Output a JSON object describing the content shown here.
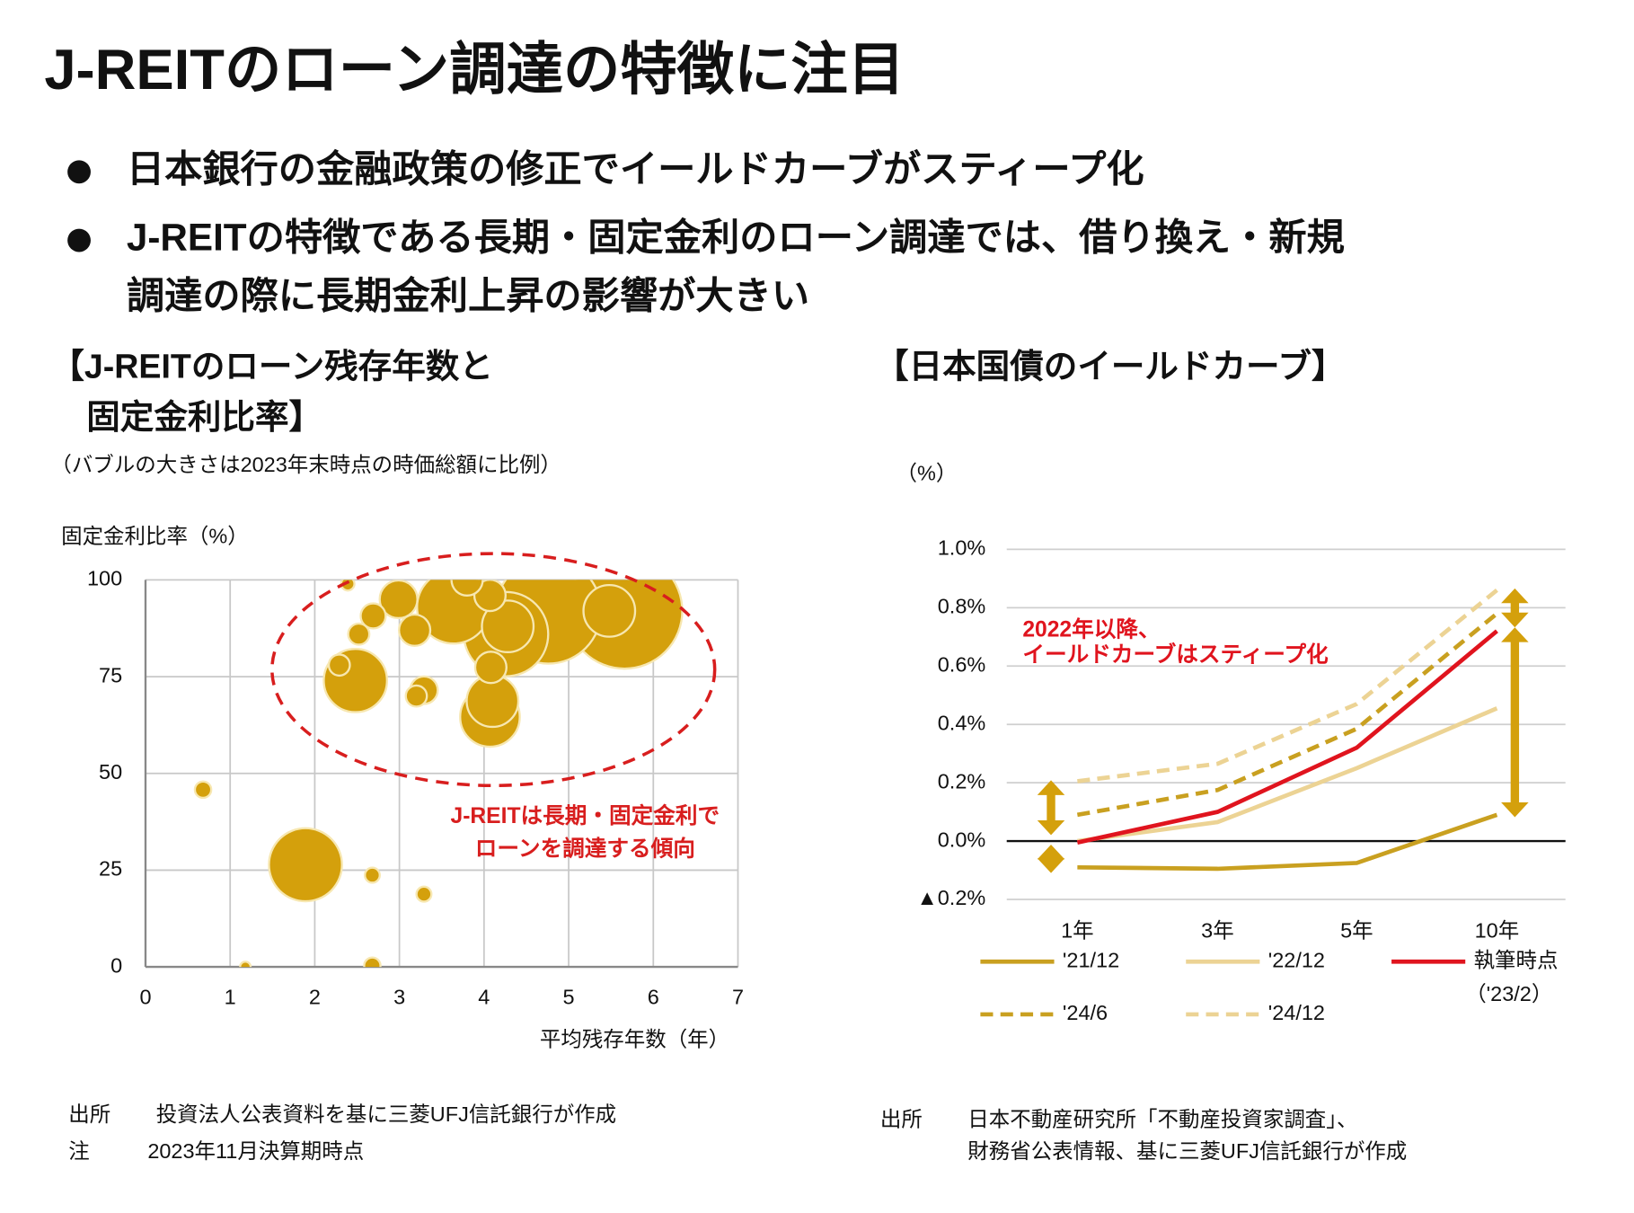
{
  "header": {
    "title": "J-REITのローン調達の特徴に注目"
  },
  "bullets": [
    [
      "日本銀行の金融政策の修正でイールドカーブがスティープ化"
    ],
    [
      "J-REITの特徴である長期・固定金利のローン調達では、借り換え・新規",
      "調達の際に長期金利上昇の影響が大きい"
    ]
  ],
  "chart_data": [
    {
      "type": "bubble",
      "title": [
        "【J-REITのローン残存年数と",
        "固定金利比率】"
      ],
      "subtitle": "（バブルの大きさは2023年末時点の時価総額に比例）",
      "ylabel": "固定金利比率（%）",
      "xlabel": "平均残存年数（年）",
      "annotation": [
        "J-REITは長期・固定金利で",
        "ローンを調達する傾向"
      ],
      "x": [
        5.66,
        4.76,
        4.26,
        3.64,
        1.89,
        2.48,
        4.07,
        4.1,
        4.28,
        5.48,
        2.99,
        4.08,
        4.07,
        3.8,
        3.18,
        3.29,
        2.69,
        2.29,
        2.52,
        3.2,
        0.68,
        2.68,
        2.68,
        3.29,
        2.39,
        1.18
      ],
      "values": [
        92,
        92,
        86,
        93,
        26.4,
        74,
        64.6,
        68.7,
        88,
        92,
        95,
        77.4,
        96,
        100,
        87,
        71.5,
        90.7,
        78,
        86,
        70,
        45.8,
        0.3,
        23.7,
        18.8,
        99,
        0
      ],
      "sizes": [
        30,
        25,
        16,
        12,
        12,
        9,
        8,
        6,
        6,
        6,
        3.2,
        2.2,
        2.2,
        2.2,
        2.2,
        1.7,
        1.4,
        1,
        1,
        1,
        0.6,
        0.6,
        0.5,
        0.5,
        0.4,
        0.25
      ],
      "color": "#d4a00c",
      "xlim": [
        0,
        7
      ],
      "xticks": [
        0,
        1,
        2,
        3,
        4,
        5,
        6,
        7
      ],
      "ylim": [
        0,
        100
      ],
      "yticks": [
        0,
        25,
        50,
        75,
        100
      ],
      "grid": true
    },
    {
      "type": "line",
      "title": "【日本国債のイールドカーブ】",
      "ylabel": "（%）",
      "annotation": [
        "2022年以降、",
        "イールドカーブはスティープ化"
      ],
      "categories": [
        "1年",
        "3年",
        "5年",
        "10年"
      ],
      "series": [
        {
          "name": "'21/12",
          "color": "#c9a020",
          "style": "solid",
          "values": [
            -0.09,
            -0.095,
            -0.075,
            0.09
          ]
        },
        {
          "name": "'22/12",
          "color": "#ecd394",
          "style": "solid",
          "values": [
            0.0,
            0.065,
            0.25,
            0.455
          ]
        },
        {
          "name": "執筆時点",
          "name_sub": "（'23/2）",
          "color": "#e0141e",
          "style": "solid",
          "values": [
            -0.005,
            0.1,
            0.32,
            0.72
          ]
        },
        {
          "name": "'24/6",
          "color": "#c9a020",
          "style": "dashed",
          "values": [
            0.09,
            0.175,
            0.385,
            0.78
          ]
        },
        {
          "name": "'24/12",
          "color": "#ecd394",
          "style": "dashed",
          "values": [
            0.205,
            0.265,
            0.47,
            0.86
          ]
        }
      ],
      "ylim": [
        -0.2,
        1.0
      ],
      "yticks": [
        {
          "value": -0.2,
          "label": "▲0.2%"
        },
        {
          "value": 0,
          "label": "0.0%"
        },
        {
          "value": 0.2,
          "label": "0.2%"
        },
        {
          "value": 0.4,
          "label": "0.4%"
        },
        {
          "value": 0.6,
          "label": "0.6%"
        },
        {
          "value": 0.8,
          "label": "0.8%"
        },
        {
          "value": 1.0,
          "label": "1.0%"
        }
      ],
      "grid": true
    }
  ],
  "notes_left": [
    {
      "label": "出所",
      "text": "投資法人公表資料を基に三菱UFJ信託銀行が作成"
    },
    {
      "label": "注",
      "text": "2023年11月決算期時点"
    }
  ],
  "notes_right": {
    "label": "出所",
    "lines": [
      "日本不動産研究所「不動産投資家調査」、",
      "財務省公表情報、基に三菱UFJ信託銀行が作成"
    ]
  }
}
